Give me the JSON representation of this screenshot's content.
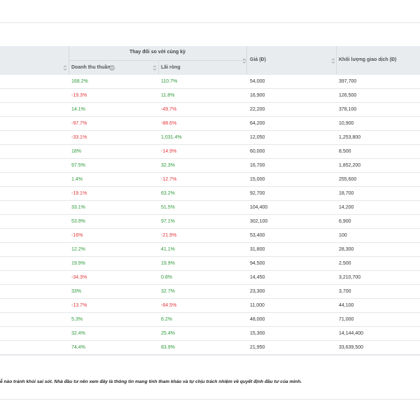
{
  "table": {
    "group_header": "Thay đổi so với cùng kỳ",
    "columns": [
      "Doanh thu thuần",
      "Lãi ròng",
      "Giá (Đ)",
      "Khối lượng giao dịch (Đ)"
    ],
    "rows": [
      [
        "168.2%",
        "110.7%",
        "54,000",
        "397,700"
      ],
      [
        "-19.3%",
        "11.8%",
        "16,900",
        "126,500"
      ],
      [
        "14.1%",
        "-49.7%",
        "22,200",
        "378,100"
      ],
      [
        "-97.7%",
        "-88.6%",
        "64,200",
        "10,900"
      ],
      [
        "-33.1%",
        "1,031.4%",
        "12,050",
        "1,253,800"
      ],
      [
        "18%",
        "-14.9%",
        "60,000",
        "8,500"
      ],
      [
        "97.5%",
        "32.3%",
        "16,700",
        "1,852,200"
      ],
      [
        "1.4%",
        "-12.7%",
        "15,000",
        "255,600"
      ],
      [
        "-19.1%",
        "63.2%",
        "92,700",
        "18,700"
      ],
      [
        "33.1%",
        "51.5%",
        "104,400",
        "14,200"
      ],
      [
        "53.9%",
        "97.1%",
        "302,100",
        "6,900"
      ],
      [
        "-16%",
        "-21.9%",
        "53,400",
        "100"
      ],
      [
        "12.2%",
        "41.1%",
        "31,800",
        "28,300"
      ],
      [
        "19.9%",
        "19.9%",
        "94,500",
        "2,500"
      ],
      [
        "-34.3%",
        "0.8%",
        "14,450",
        "3,210,700"
      ],
      [
        "33%",
        "32.7%",
        "23,300",
        "3,700"
      ],
      [
        "-13.7%",
        "-64.5%",
        "11,000",
        "44,100"
      ],
      [
        "5.3%",
        "6.2%",
        "48,000",
        "71,000"
      ],
      [
        "32.4%",
        "25.4%",
        "15,300",
        "14,144,400"
      ],
      [
        "74.4%",
        "83.9%",
        "21,950",
        "33,639,500"
      ]
    ]
  },
  "footer": {
    "disclaimer": "ễ nào tránh khỏi sai sót. Nhà đầu tư nên xem đây là thông tin mang tính tham khảo và tự chịu trách nhiệm về quyết định đầu tư của mình."
  }
}
